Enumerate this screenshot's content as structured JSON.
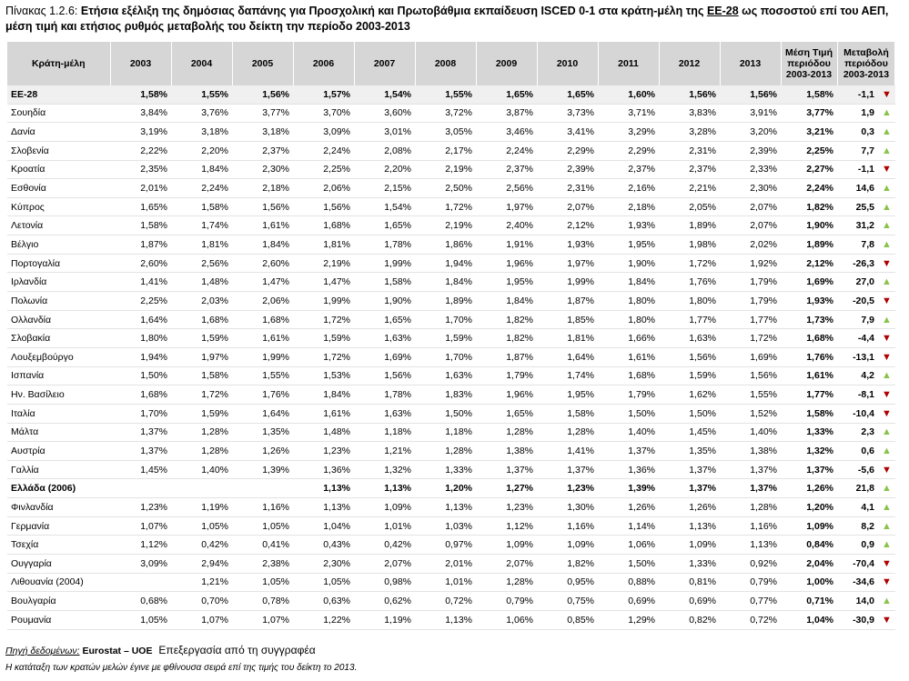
{
  "title": {
    "number": "Πίνακας 1.2.6:",
    "part1": "Ετήσια εξέλιξη της δημόσιας δαπάνης για Προσχολική και Πρωτοβάθμια εκπαίδευση ISCED 0-1 στα κράτη-μέλη της",
    "underlined": "ΕΕ-28",
    "part2": "ως ποσοστού επί του ΑΕΠ, μέση τιμή και ετήσιος ρυθμός μεταβολής του δείκτη την περίοδο 2003-2013"
  },
  "header": {
    "country": "Κράτη-μέλη",
    "years": [
      "2003",
      "2004",
      "2005",
      "2006",
      "2007",
      "2008",
      "2009",
      "2010",
      "2011",
      "2012",
      "2013"
    ],
    "avg": [
      "Μέση Τιμή",
      "περιόδου",
      "2003-2013"
    ],
    "chg": [
      "Μεταβολή",
      "περιόδου",
      "2003-2013"
    ]
  },
  "rows": [
    {
      "country": "ΕΕ-28",
      "values": [
        "1,58%",
        "1,55%",
        "1,56%",
        "1,57%",
        "1,54%",
        "1,55%",
        "1,65%",
        "1,65%",
        "1,60%",
        "1,56%",
        "1,56%"
      ],
      "avg": "1,58%",
      "chg": "-1,1",
      "dir": "down"
    },
    {
      "country": "Σουηδία",
      "values": [
        "3,84%",
        "3,76%",
        "3,77%",
        "3,70%",
        "3,60%",
        "3,72%",
        "3,87%",
        "3,73%",
        "3,71%",
        "3,83%",
        "3,91%"
      ],
      "avg": "3,77%",
      "chg": "1,9",
      "dir": "up"
    },
    {
      "country": "Δανία",
      "values": [
        "3,19%",
        "3,18%",
        "3,18%",
        "3,09%",
        "3,01%",
        "3,05%",
        "3,46%",
        "3,41%",
        "3,29%",
        "3,28%",
        "3,20%"
      ],
      "avg": "3,21%",
      "chg": "0,3",
      "dir": "up"
    },
    {
      "country": "Σλοβενία",
      "values": [
        "2,22%",
        "2,20%",
        "2,37%",
        "2,24%",
        "2,08%",
        "2,17%",
        "2,24%",
        "2,29%",
        "2,29%",
        "2,31%",
        "2,39%"
      ],
      "avg": "2,25%",
      "chg": "7,7",
      "dir": "up"
    },
    {
      "country": "Κροατία",
      "values": [
        "2,35%",
        "1,84%",
        "2,30%",
        "2,25%",
        "2,20%",
        "2,19%",
        "2,37%",
        "2,39%",
        "2,37%",
        "2,37%",
        "2,33%"
      ],
      "avg": "2,27%",
      "chg": "-1,1",
      "dir": "down"
    },
    {
      "country": "Εσθονία",
      "values": [
        "2,01%",
        "2,24%",
        "2,18%",
        "2,06%",
        "2,15%",
        "2,50%",
        "2,56%",
        "2,31%",
        "2,16%",
        "2,21%",
        "2,30%"
      ],
      "avg": "2,24%",
      "chg": "14,6",
      "dir": "up"
    },
    {
      "country": "Κύπρος",
      "values": [
        "1,65%",
        "1,58%",
        "1,56%",
        "1,56%",
        "1,54%",
        "1,72%",
        "1,97%",
        "2,07%",
        "2,18%",
        "2,05%",
        "2,07%"
      ],
      "avg": "1,82%",
      "chg": "25,5",
      "dir": "up"
    },
    {
      "country": "Λετονία",
      "values": [
        "1,58%",
        "1,74%",
        "1,61%",
        "1,68%",
        "1,65%",
        "2,19%",
        "2,40%",
        "2,12%",
        "1,93%",
        "1,89%",
        "2,07%"
      ],
      "avg": "1,90%",
      "chg": "31,2",
      "dir": "up"
    },
    {
      "country": "Βέλγιο",
      "values": [
        "1,87%",
        "1,81%",
        "1,84%",
        "1,81%",
        "1,78%",
        "1,86%",
        "1,91%",
        "1,93%",
        "1,95%",
        "1,98%",
        "2,02%"
      ],
      "avg": "1,89%",
      "chg": "7,8",
      "dir": "up"
    },
    {
      "country": "Πορτογαλία",
      "values": [
        "2,60%",
        "2,56%",
        "2,60%",
        "2,19%",
        "1,99%",
        "1,94%",
        "1,96%",
        "1,97%",
        "1,90%",
        "1,72%",
        "1,92%"
      ],
      "avg": "2,12%",
      "chg": "-26,3",
      "dir": "down"
    },
    {
      "country": "Ιρλανδία",
      "values": [
        "1,41%",
        "1,48%",
        "1,47%",
        "1,47%",
        "1,58%",
        "1,84%",
        "1,95%",
        "1,99%",
        "1,84%",
        "1,76%",
        "1,79%"
      ],
      "avg": "1,69%",
      "chg": "27,0",
      "dir": "up"
    },
    {
      "country": "Πολωνία",
      "values": [
        "2,25%",
        "2,03%",
        "2,06%",
        "1,99%",
        "1,90%",
        "1,89%",
        "1,84%",
        "1,87%",
        "1,80%",
        "1,80%",
        "1,79%"
      ],
      "avg": "1,93%",
      "chg": "-20,5",
      "dir": "down"
    },
    {
      "country": "Ολλανδία",
      "values": [
        "1,64%",
        "1,68%",
        "1,68%",
        "1,72%",
        "1,65%",
        "1,70%",
        "1,82%",
        "1,85%",
        "1,80%",
        "1,77%",
        "1,77%"
      ],
      "avg": "1,73%",
      "chg": "7,9",
      "dir": "up"
    },
    {
      "country": "Σλοβακία",
      "values": [
        "1,80%",
        "1,59%",
        "1,61%",
        "1,59%",
        "1,63%",
        "1,59%",
        "1,82%",
        "1,81%",
        "1,66%",
        "1,63%",
        "1,72%"
      ],
      "avg": "1,68%",
      "chg": "-4,4",
      "dir": "down"
    },
    {
      "country": "Λουξεμβούργο",
      "values": [
        "1,94%",
        "1,97%",
        "1,99%",
        "1,72%",
        "1,69%",
        "1,70%",
        "1,87%",
        "1,64%",
        "1,61%",
        "1,56%",
        "1,69%"
      ],
      "avg": "1,76%",
      "chg": "-13,1",
      "dir": "down"
    },
    {
      "country": "Ισπανία",
      "values": [
        "1,50%",
        "1,58%",
        "1,55%",
        "1,53%",
        "1,56%",
        "1,63%",
        "1,79%",
        "1,74%",
        "1,68%",
        "1,59%",
        "1,56%"
      ],
      "avg": "1,61%",
      "chg": "4,2",
      "dir": "up"
    },
    {
      "country": "Ην. Βασίλειο",
      "values": [
        "1,68%",
        "1,72%",
        "1,76%",
        "1,84%",
        "1,78%",
        "1,83%",
        "1,96%",
        "1,95%",
        "1,79%",
        "1,62%",
        "1,55%"
      ],
      "avg": "1,77%",
      "chg": "-8,1",
      "dir": "down"
    },
    {
      "country": "Ιταλία",
      "values": [
        "1,70%",
        "1,59%",
        "1,64%",
        "1,61%",
        "1,63%",
        "1,50%",
        "1,65%",
        "1,58%",
        "1,50%",
        "1,50%",
        "1,52%"
      ],
      "avg": "1,58%",
      "chg": "-10,4",
      "dir": "down"
    },
    {
      "country": "Μάλτα",
      "values": [
        "1,37%",
        "1,28%",
        "1,35%",
        "1,48%",
        "1,18%",
        "1,18%",
        "1,28%",
        "1,28%",
        "1,40%",
        "1,45%",
        "1,40%"
      ],
      "avg": "1,33%",
      "chg": "2,3",
      "dir": "up"
    },
    {
      "country": "Αυστρία",
      "values": [
        "1,37%",
        "1,28%",
        "1,26%",
        "1,23%",
        "1,21%",
        "1,28%",
        "1,38%",
        "1,41%",
        "1,37%",
        "1,35%",
        "1,38%"
      ],
      "avg": "1,32%",
      "chg": "0,6",
      "dir": "up"
    },
    {
      "country": "Γαλλία",
      "values": [
        "1,45%",
        "1,40%",
        "1,39%",
        "1,36%",
        "1,32%",
        "1,33%",
        "1,37%",
        "1,37%",
        "1,36%",
        "1,37%",
        "1,37%"
      ],
      "avg": "1,37%",
      "chg": "-5,6",
      "dir": "down"
    },
    {
      "country": "Ελλάδα (2006)",
      "values": [
        "",
        "",
        "",
        "1,13%",
        "1,13%",
        "1,20%",
        "1,27%",
        "1,23%",
        "1,39%",
        "1,37%",
        "1,37%"
      ],
      "avg": "1,26%",
      "chg": "21,8",
      "dir": "up"
    },
    {
      "country": "Φινλανδία",
      "values": [
        "1,23%",
        "1,19%",
        "1,16%",
        "1,13%",
        "1,09%",
        "1,13%",
        "1,23%",
        "1,30%",
        "1,26%",
        "1,26%",
        "1,28%"
      ],
      "avg": "1,20%",
      "chg": "4,1",
      "dir": "up"
    },
    {
      "country": "Γερμανία",
      "values": [
        "1,07%",
        "1,05%",
        "1,05%",
        "1,04%",
        "1,01%",
        "1,03%",
        "1,12%",
        "1,16%",
        "1,14%",
        "1,13%",
        "1,16%"
      ],
      "avg": "1,09%",
      "chg": "8,2",
      "dir": "up"
    },
    {
      "country": "Τσεχία",
      "values": [
        "1,12%",
        "0,42%",
        "0,41%",
        "0,43%",
        "0,42%",
        "0,97%",
        "1,09%",
        "1,09%",
        "1,06%",
        "1,09%",
        "1,13%"
      ],
      "avg": "0,84%",
      "chg": "0,9",
      "dir": "up"
    },
    {
      "country": "Ουγγαρία",
      "values": [
        "3,09%",
        "2,94%",
        "2,38%",
        "2,30%",
        "2,07%",
        "2,01%",
        "2,07%",
        "1,82%",
        "1,50%",
        "1,33%",
        "0,92%"
      ],
      "avg": "2,04%",
      "chg": "-70,4",
      "dir": "down"
    },
    {
      "country": "Λιθουανία (2004)",
      "values": [
        "",
        "1,21%",
        "1,05%",
        "1,05%",
        "0,98%",
        "1,01%",
        "1,28%",
        "0,95%",
        "0,88%",
        "0,81%",
        "0,79%"
      ],
      "avg": "1,00%",
      "chg": "-34,6",
      "dir": "down"
    },
    {
      "country": "Βουλγαρία",
      "values": [
        "0,68%",
        "0,70%",
        "0,78%",
        "0,63%",
        "0,62%",
        "0,72%",
        "0,79%",
        "0,75%",
        "0,69%",
        "0,69%",
        "0,77%"
      ],
      "avg": "0,71%",
      "chg": "14,0",
      "dir": "up"
    },
    {
      "country": "Ρουμανία",
      "values": [
        "1,05%",
        "1,07%",
        "1,07%",
        "1,22%",
        "1,19%",
        "1,13%",
        "1,06%",
        "0,85%",
        "1,29%",
        "0,82%",
        "0,72%"
      ],
      "avg": "1,04%",
      "chg": "-30,9",
      "dir": "down"
    }
  ],
  "source": {
    "label": "Πηγή δεδομένων:",
    "value": "Eurostat – UOE",
    "extra": "Επεξεργασία από τη συγγραφέα"
  },
  "note": "Η κατάταξη των κρατών μελών έγινε με φθίνουσα σειρά επί της τιμής του δείκτη το 2013.",
  "colors": {
    "up": "#8bc34a",
    "down": "#b00000",
    "header_bg": "#d6d6d6"
  }
}
